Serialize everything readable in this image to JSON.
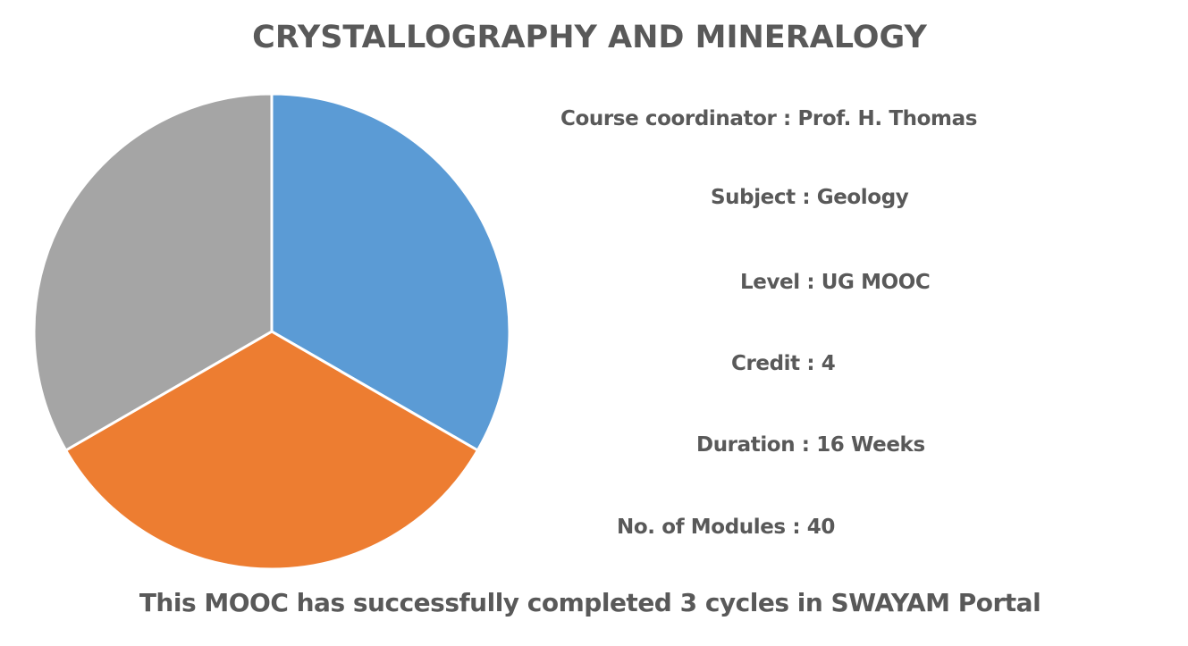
{
  "chart_data": {
    "type": "pie",
    "title": "CRYSTALLOGRAPHY AND MINERALOGY",
    "slices": [
      {
        "value": 1,
        "color": "#5B9BD5"
      },
      {
        "value": 1,
        "color": "#ED7D31"
      },
      {
        "value": 1,
        "color": "#A5A5A5"
      }
    ],
    "start_angle_deg": 0,
    "direction": "clockwise",
    "legend": "none"
  },
  "info": {
    "coordinator": "Course coordinator : Prof. H. Thomas",
    "subject": "Subject : Geology",
    "level": "Level : UG MOOC",
    "credit": "Credit : 4",
    "duration": "Duration : 16 Weeks",
    "modules": "No. of Modules : 40"
  },
  "footer": "This MOOC has successfully completed 3 cycles in SWAYAM Portal",
  "colors": {
    "text": "#595959"
  }
}
